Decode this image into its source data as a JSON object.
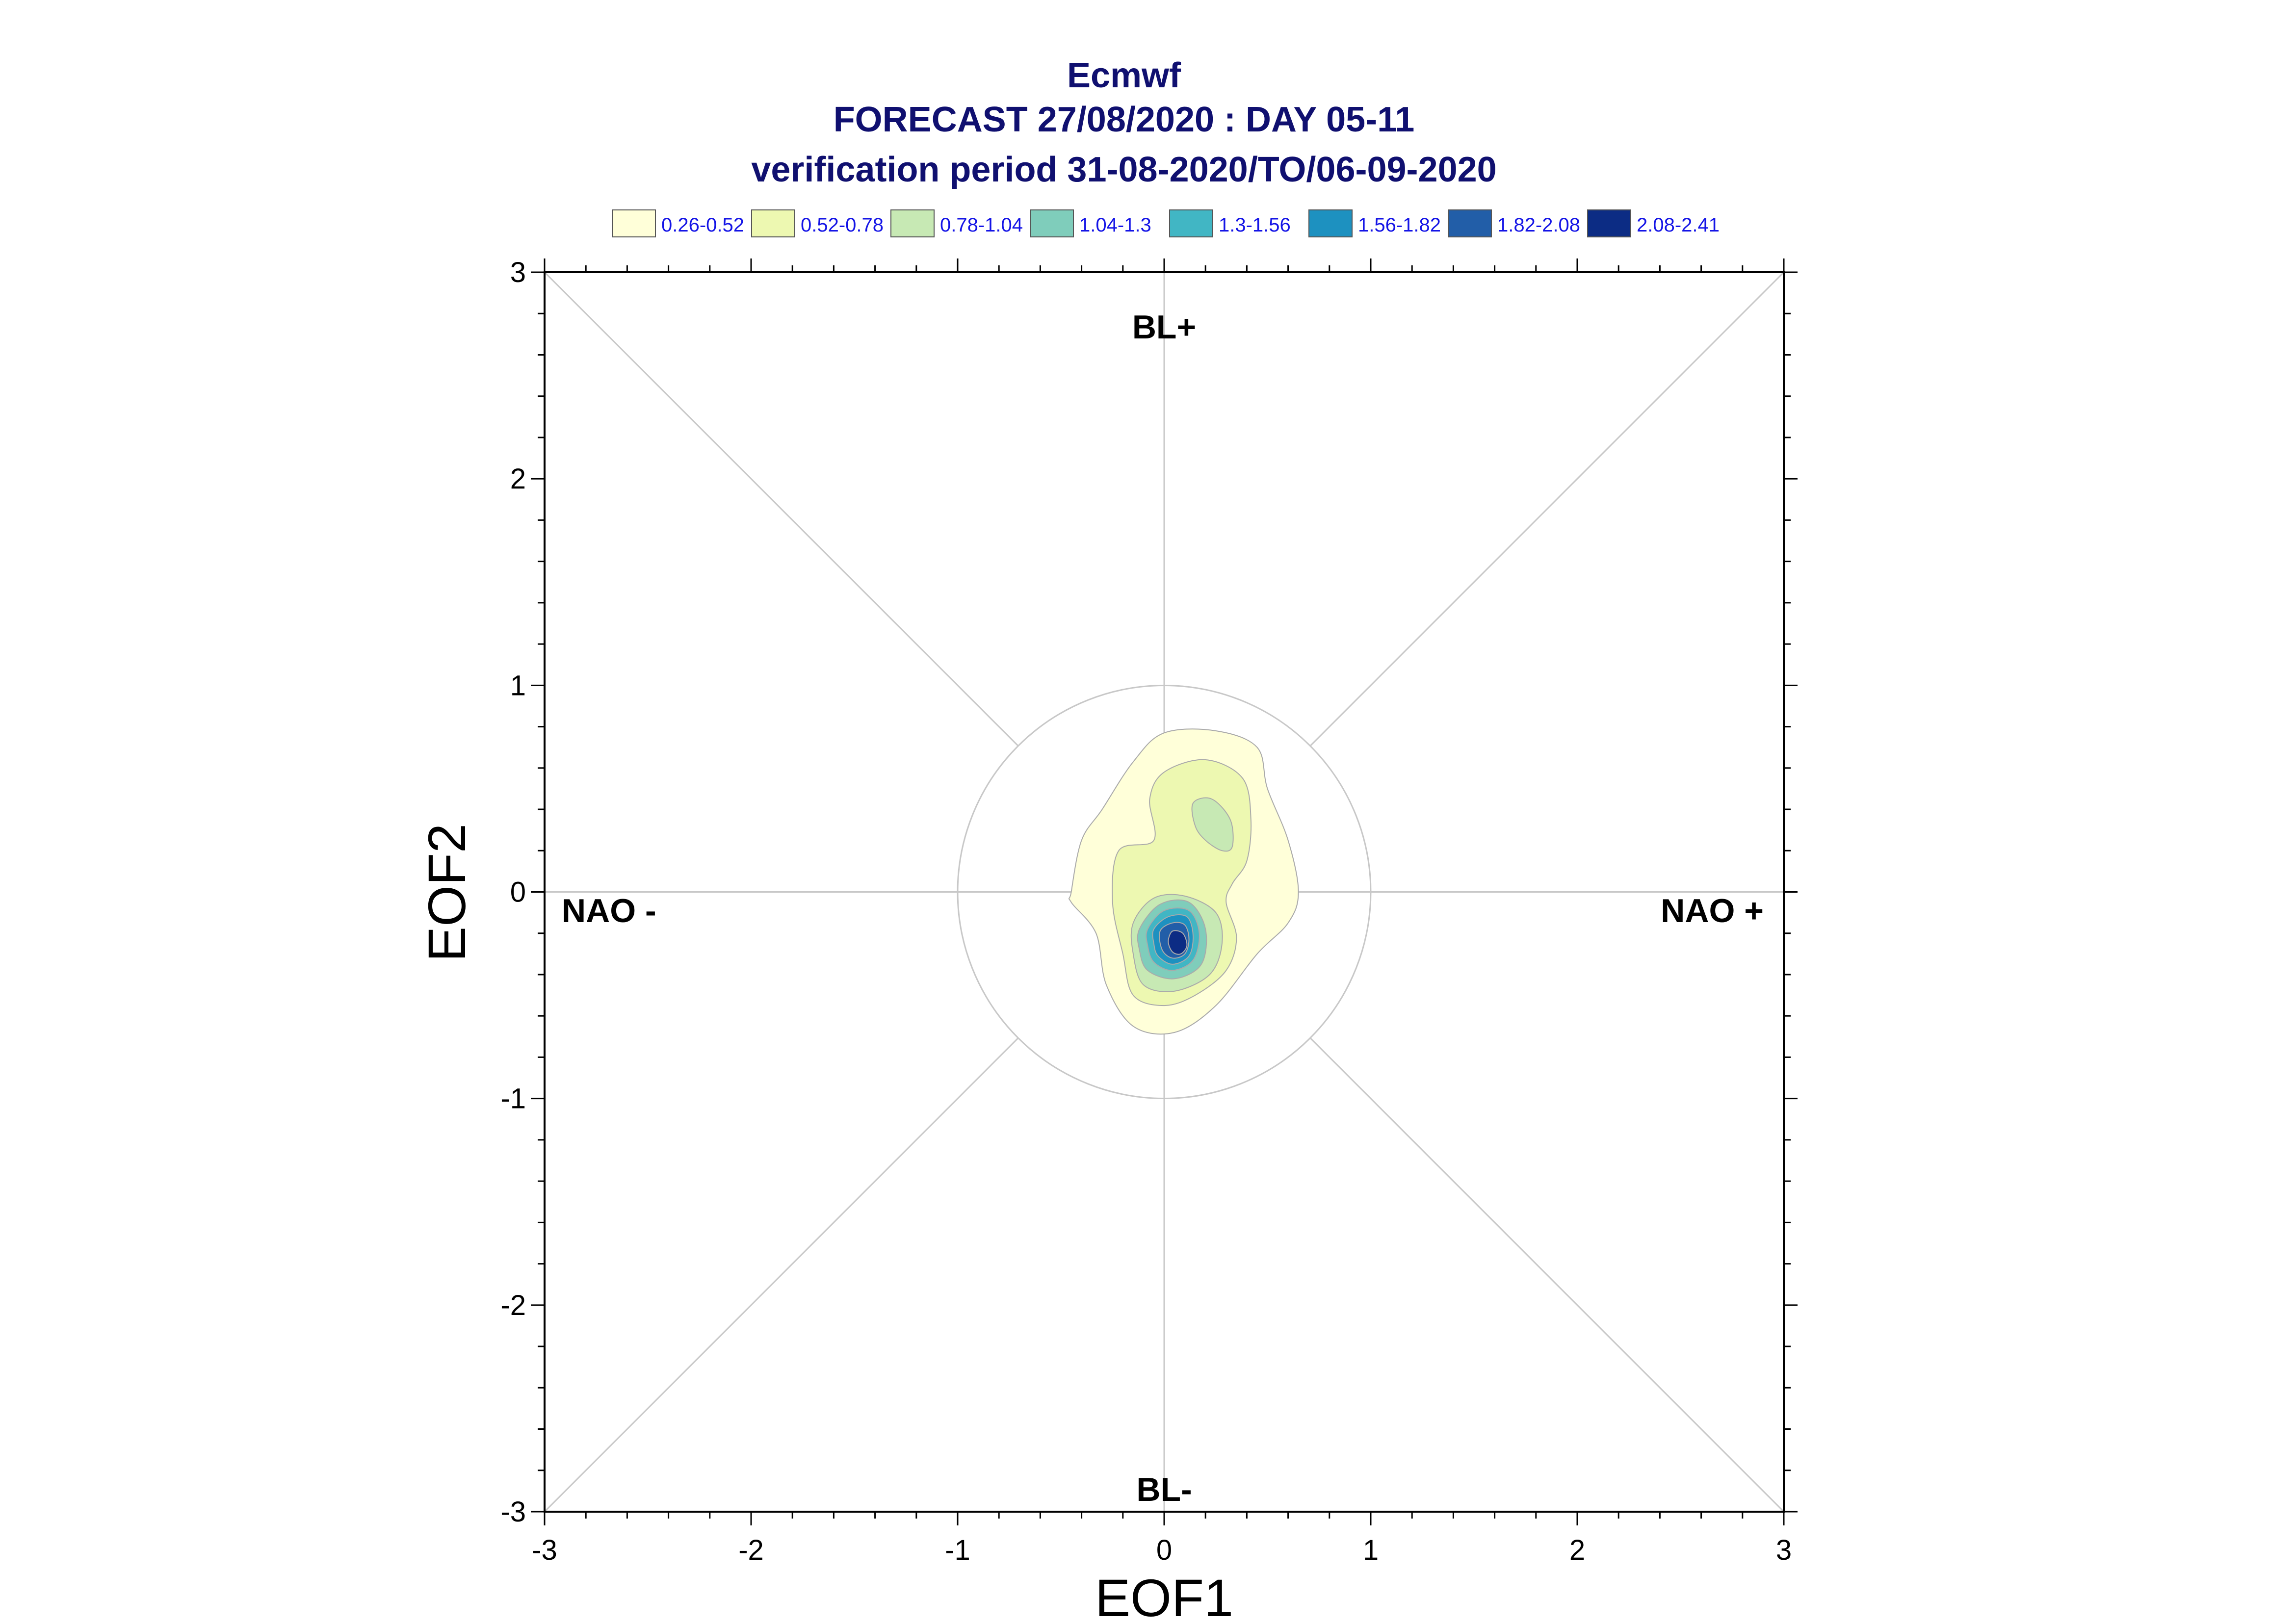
{
  "chart_data": {
    "type": "contour",
    "title": [
      "Ecmwf",
      "FORECAST 27/08/2020 : DAY 05-11",
      "verification period 31-08-2020/TO/06-09-2020"
    ],
    "xlabel": "EOF1",
    "ylabel": "EOF2",
    "xlim": [
      -3,
      3
    ],
    "ylim": [
      -3,
      3
    ],
    "xticks": [
      "-3",
      "-2",
      "-1",
      "0",
      "1",
      "2",
      "3"
    ],
    "yticks": [
      "-3",
      "-2",
      "-1",
      "0",
      "1",
      "2",
      "3"
    ],
    "reference_circle_radius": 1,
    "regime_labels": {
      "top": "BL+",
      "bottom": "BL-",
      "left": "NAO -",
      "right": "NAO +"
    },
    "legend": [
      {
        "range": "0.26-0.52",
        "color": "#ffffd9"
      },
      {
        "range": "0.52-0.78",
        "color": "#edf8b1"
      },
      {
        "range": "0.78-1.04",
        "color": "#c7e9b4"
      },
      {
        "range": "1.04-1.3",
        "color": "#7fcdbb"
      },
      {
        "range": "1.3-1.56",
        "color": "#41b6c4"
      },
      {
        "range": "1.56-1.82",
        "color": "#1d91c0"
      },
      {
        "range": "1.82-2.08",
        "color": "#225ea8"
      },
      {
        "range": "2.08-2.41",
        "color": "#0c2c84"
      }
    ],
    "contours": [
      {
        "level": "0.26-0.52",
        "color": "#ffffd9",
        "points": [
          [
            -0.45,
            0.0
          ],
          [
            -0.4,
            0.25
          ],
          [
            -0.3,
            0.4
          ],
          [
            -0.15,
            0.63
          ],
          [
            0.0,
            0.77
          ],
          [
            0.25,
            0.78
          ],
          [
            0.45,
            0.7
          ],
          [
            0.5,
            0.5
          ],
          [
            0.6,
            0.25
          ],
          [
            0.65,
            0.0
          ],
          [
            0.6,
            -0.15
          ],
          [
            0.45,
            -0.3
          ],
          [
            0.25,
            -0.55
          ],
          [
            0.05,
            -0.68
          ],
          [
            -0.15,
            -0.65
          ],
          [
            -0.28,
            -0.45
          ],
          [
            -0.33,
            -0.2
          ],
          [
            -0.45,
            -0.05
          ]
        ]
      },
      {
        "level": "0.52-0.78",
        "color": "#edf8b1",
        "points": [
          [
            -0.22,
            0.2
          ],
          [
            -0.05,
            0.25
          ],
          [
            -0.07,
            0.45
          ],
          [
            0.0,
            0.58
          ],
          [
            0.2,
            0.64
          ],
          [
            0.38,
            0.55
          ],
          [
            0.42,
            0.35
          ],
          [
            0.4,
            0.15
          ],
          [
            0.33,
            0.04
          ],
          [
            0.3,
            -0.05
          ],
          [
            0.35,
            -0.22
          ],
          [
            0.3,
            -0.38
          ],
          [
            0.15,
            -0.5
          ],
          [
            0.0,
            -0.55
          ],
          [
            -0.15,
            -0.5
          ],
          [
            -0.2,
            -0.3
          ],
          [
            -0.25,
            -0.05
          ]
        ]
      },
      {
        "level": "0.78-1.04",
        "color": "#c7e9b4",
        "points": [
          [
            0.14,
            0.43
          ],
          [
            0.23,
            0.45
          ],
          [
            0.32,
            0.35
          ],
          [
            0.33,
            0.22
          ],
          [
            0.28,
            0.2
          ],
          [
            0.2,
            0.25
          ],
          [
            0.15,
            0.32
          ]
        ]
      },
      {
        "level": "0.78-1.04",
        "color": "#c7e9b4",
        "points": [
          [
            -0.15,
            -0.15
          ],
          [
            -0.05,
            -0.03
          ],
          [
            0.1,
            -0.02
          ],
          [
            0.25,
            -0.1
          ],
          [
            0.28,
            -0.25
          ],
          [
            0.22,
            -0.4
          ],
          [
            0.05,
            -0.48
          ],
          [
            -0.1,
            -0.45
          ],
          [
            -0.15,
            -0.3
          ]
        ]
      },
      {
        "level": "1.04-1.3",
        "color": "#7fcdbb",
        "points": [
          [
            -0.12,
            -0.18
          ],
          [
            -0.02,
            -0.06
          ],
          [
            0.12,
            -0.05
          ],
          [
            0.2,
            -0.18
          ],
          [
            0.18,
            -0.35
          ],
          [
            0.05,
            -0.42
          ],
          [
            -0.08,
            -0.38
          ],
          [
            -0.12,
            -0.28
          ]
        ]
      },
      {
        "level": "1.3-1.56",
        "color": "#41b6c4",
        "points": [
          [
            -0.08,
            -0.18
          ],
          [
            0.0,
            -0.09
          ],
          [
            0.12,
            -0.09
          ],
          [
            0.17,
            -0.2
          ],
          [
            0.14,
            -0.33
          ],
          [
            0.04,
            -0.38
          ],
          [
            -0.05,
            -0.34
          ],
          [
            -0.08,
            -0.26
          ]
        ]
      },
      {
        "level": "1.56-1.82",
        "color": "#1d91c0",
        "points": [
          [
            -0.05,
            -0.18
          ],
          [
            0.02,
            -0.12
          ],
          [
            0.11,
            -0.12
          ],
          [
            0.14,
            -0.21
          ],
          [
            0.12,
            -0.31
          ],
          [
            0.04,
            -0.35
          ],
          [
            -0.03,
            -0.31
          ],
          [
            -0.05,
            -0.25
          ]
        ]
      },
      {
        "level": "1.82-2.08",
        "color": "#225ea8",
        "points": [
          [
            -0.02,
            -0.19
          ],
          [
            0.04,
            -0.15
          ],
          [
            0.1,
            -0.16
          ],
          [
            0.12,
            -0.23
          ],
          [
            0.1,
            -0.3
          ],
          [
            0.04,
            -0.32
          ],
          [
            -0.01,
            -0.28
          ]
        ]
      },
      {
        "level": "2.08-2.41",
        "color": "#0c2c84",
        "points": [
          [
            0.04,
            -0.19
          ],
          [
            0.09,
            -0.2
          ],
          [
            0.11,
            -0.26
          ],
          [
            0.08,
            -0.3
          ],
          [
            0.04,
            -0.29
          ],
          [
            0.02,
            -0.24
          ]
        ]
      }
    ]
  }
}
